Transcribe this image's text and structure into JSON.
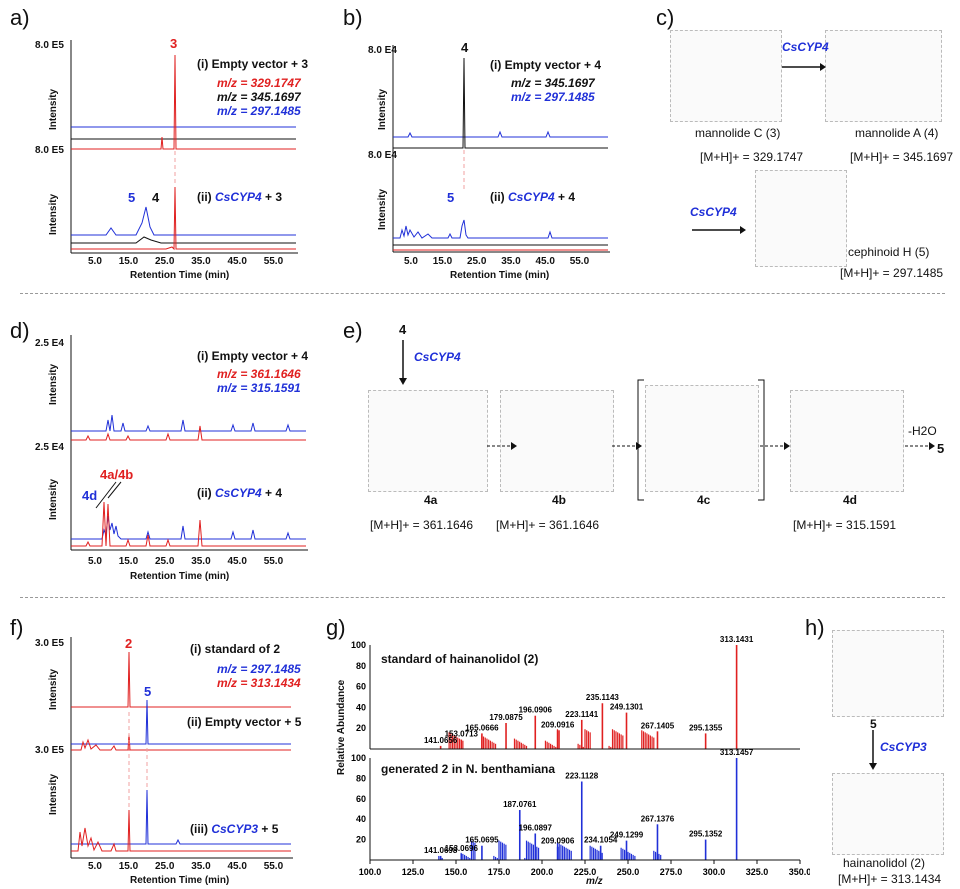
{
  "panel_labels": [
    "a)",
    "b)",
    "c)",
    "d)",
    "e)",
    "f)",
    "g)",
    "h)"
  ],
  "colors": {
    "red": "#e02020",
    "blue": "#2030d8",
    "black": "#111111"
  },
  "common": {
    "intensity": "Intensity",
    "retention_time": "Retention Time (min)",
    "rt_ticks": [
      "5.0",
      "15.0",
      "25.0",
      "35.0",
      "45.0",
      "55.0"
    ],
    "relative_abundance": "Relative Abundance",
    "mz_axis": "m/z"
  },
  "panel_a": {
    "scale_top": "8.0 E5",
    "scale_bottom": "8.0 E5",
    "trace1_label": "(i) Empty vector + 3",
    "trace2_label_pre": "(ii) ",
    "trace2_enzyme": "CsCYP4",
    "trace2_label_post": " + 3",
    "mz1": "m/z = 329.1747",
    "mz2": "m/z = 345.1697",
    "mz3": "m/z = 297.1485",
    "peak_top": "3",
    "peak_b1": "5",
    "peak_b2": "4"
  },
  "panel_b": {
    "scale_top": "8.0 E4",
    "scale_bottom": "8.0 E4",
    "trace1_label": "(i) Empty vector + 4",
    "trace2_label_pre": "(ii) ",
    "trace2_enzyme": "CsCYP4",
    "trace2_label_post": " + 4",
    "mz1": "m/z = 345.1697",
    "mz2": "m/z = 297.1485",
    "peak_top": "4",
    "peak_b1": "5"
  },
  "panel_c": {
    "enzyme1": "CsCYP4",
    "enzyme2": "CsCYP4",
    "compound3": "mannolide C (3)",
    "ion3": "[M+H]+ = 329.1747",
    "compound4": "mannolide A (4)",
    "ion4": "[M+H]+ = 345.1697",
    "compound5": "cephinoid H (5)",
    "ion5": "[M+H]+ = 297.1485"
  },
  "panel_d": {
    "scale_top": "2.5 E4",
    "scale_bottom": "2.5 E4",
    "trace1_label": "(i) Empty vector + 4",
    "trace2_label_pre": "(ii) ",
    "trace2_enzyme": "CsCYP4",
    "trace2_label_post": " + 4",
    "mz1": "m/z = 361.1646",
    "mz2": "m/z = 315.1591",
    "peak_a": "4a/4b",
    "peak_d": "4d"
  },
  "panel_e": {
    "start": "4",
    "enzyme": "CsCYP4",
    "compounds": [
      "4a",
      "4b",
      "4c",
      "4d"
    ],
    "ions": [
      "[M+H]+ = 361.1646",
      "[M+H]+ = 361.1646",
      "[M+H]+ = 315.1591"
    ],
    "dehydration": "-H2O",
    "product": "5"
  },
  "panel_f": {
    "scale_top": "3.0 E5",
    "scale_bottom": "3.0 E5",
    "trace1_label": "(i) standard of 2",
    "trace2_label": "(ii) Empty vector + 5",
    "trace3_label_pre": "(iii) ",
    "trace3_enzyme": "CsCYP3",
    "trace3_label_post": " + 5",
    "mz1": "m/z = 297.1485",
    "mz2": "m/z = 313.1434",
    "peak_2": "2",
    "peak_5": "5"
  },
  "panel_g": {
    "top_title": "standard of hainanolidol (2)",
    "bottom_title": "generated 2 in N. benthamiana",
    "y_ticks": [
      "100",
      "80",
      "60",
      "40",
      "20"
    ],
    "x_ticks": [
      "100.0",
      "125.0",
      "150.0",
      "175.0",
      "200.0",
      "225.0",
      "250.0",
      "275.0",
      "300.0",
      "325.0",
      "350.0"
    ]
  },
  "panel_h": {
    "top_compound": "5",
    "enzyme": "CsCYP3",
    "product": "hainanolidol (2)",
    "ion": "[M+H]+ = 313.1434"
  },
  "chart_data": [
    {
      "type": "bar",
      "title": "standard of hainanolidol (2)",
      "xlabel": "m/z",
      "ylabel": "Relative Abundance",
      "xlim": [
        100,
        350
      ],
      "ylim": [
        0,
        100
      ],
      "peaks": [
        {
          "mz": 141.0656,
          "value": 3,
          "label": "141.0656"
        },
        {
          "mz": 153.0713,
          "value": 9,
          "label": "153.0713"
        },
        {
          "mz": 165.0666,
          "value": 15,
          "label": "165.0666"
        },
        {
          "mz": 179.0875,
          "value": 25,
          "label": "179.0875"
        },
        {
          "mz": 196.0906,
          "value": 32,
          "label": "196.0906"
        },
        {
          "mz": 209.0916,
          "value": 18,
          "label": "209.0916"
        },
        {
          "mz": 223.1141,
          "value": 28,
          "label": "223.1141"
        },
        {
          "mz": 235.1143,
          "value": 44,
          "label": "235.1143"
        },
        {
          "mz": 249.1301,
          "value": 35,
          "label": "249.1301"
        },
        {
          "mz": 267.1405,
          "value": 17,
          "label": "267.1405"
        },
        {
          "mz": 295.1355,
          "value": 15,
          "label": "295.1355"
        },
        {
          "mz": 313.1431,
          "value": 100,
          "label": "313.1431"
        }
      ]
    },
    {
      "type": "bar",
      "title": "generated 2 in N. benthamiana",
      "xlabel": "m/z",
      "ylabel": "Relative Abundance",
      "xlim": [
        100,
        350
      ],
      "ylim": [
        0,
        100
      ],
      "peaks": [
        {
          "mz": 141.0698,
          "value": 4,
          "label": "141.0698"
        },
        {
          "mz": 153.0696,
          "value": 6,
          "label": "153.0696"
        },
        {
          "mz": 165.0695,
          "value": 14,
          "label": "165.0695"
        },
        {
          "mz": 187.0761,
          "value": 49,
          "label": "187.0761"
        },
        {
          "mz": 196.0897,
          "value": 26,
          "label": "196.0897"
        },
        {
          "mz": 209.0906,
          "value": 13,
          "label": "209.0906"
        },
        {
          "mz": 223.1128,
          "value": 77,
          "label": "223.1128"
        },
        {
          "mz": 234.1054,
          "value": 14,
          "label": "234.1054"
        },
        {
          "mz": 249.1299,
          "value": 19,
          "label": "249.1299"
        },
        {
          "mz": 267.1376,
          "value": 35,
          "label": "267.1376"
        },
        {
          "mz": 295.1352,
          "value": 20,
          "label": "295.1352"
        },
        {
          "mz": 313.1457,
          "value": 100,
          "label": "313.1457"
        }
      ]
    }
  ]
}
